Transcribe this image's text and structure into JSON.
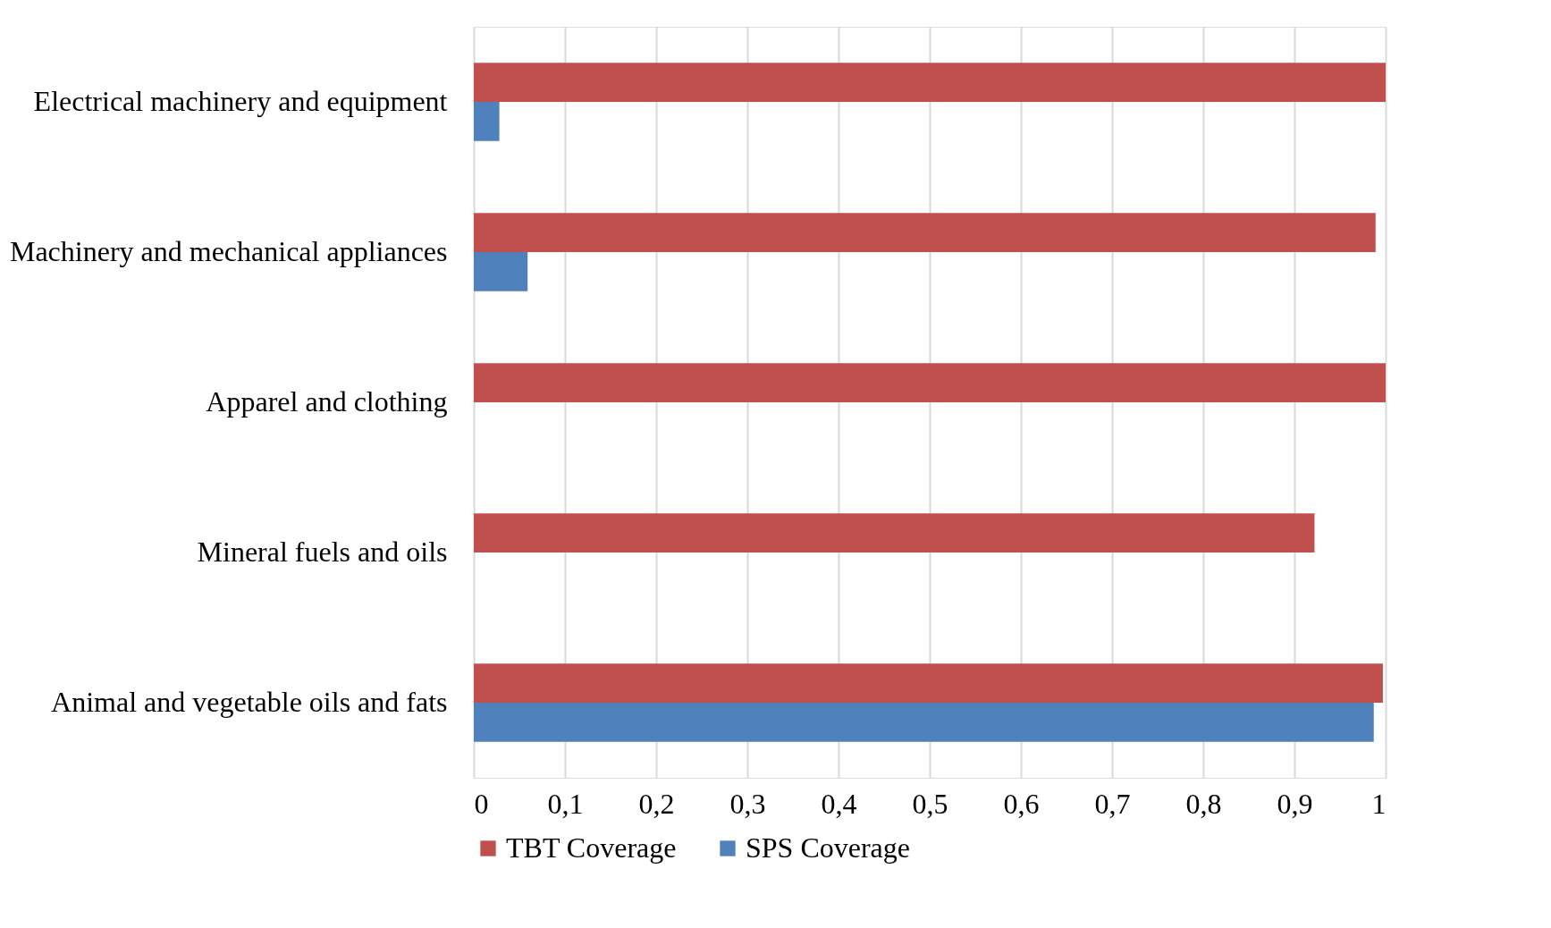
{
  "chart_data": {
    "type": "bar",
    "orientation": "horizontal",
    "categories": [
      "Electrical machinery and equipment",
      "Machinery and mechanical appliances",
      "Apparel and clothing",
      "Mineral fuels and oils",
      "Animal and vegetable oils and fats"
    ],
    "series": [
      {
        "name": "TBT Coverage",
        "color": "#c0504d",
        "values": [
          1.0,
          0.989,
          1.0,
          0.922,
          0.997
        ]
      },
      {
        "name": "SPS Coverage",
        "color": "#4f81bd",
        "values": [
          0.028,
          0.059,
          0,
          0,
          0.987
        ]
      }
    ],
    "xlim": [
      0,
      1
    ],
    "xticks": [
      0,
      {
        "value": 0.1,
        "label": "0,1"
      },
      {
        "value": 0.2,
        "label": "0,2"
      },
      {
        "value": 0.3,
        "label": "0,3"
      },
      {
        "value": 0.4,
        "label": "0,4"
      },
      {
        "value": 0.5,
        "label": "0,5"
      },
      {
        "value": 0.6,
        "label": "0,6"
      },
      {
        "value": 0.7,
        "label": "0,7"
      },
      {
        "value": 0.8,
        "label": "0,8"
      },
      {
        "value": 0.9,
        "label": "0,9"
      },
      1
    ],
    "grid": "x",
    "legend": "bottom"
  }
}
